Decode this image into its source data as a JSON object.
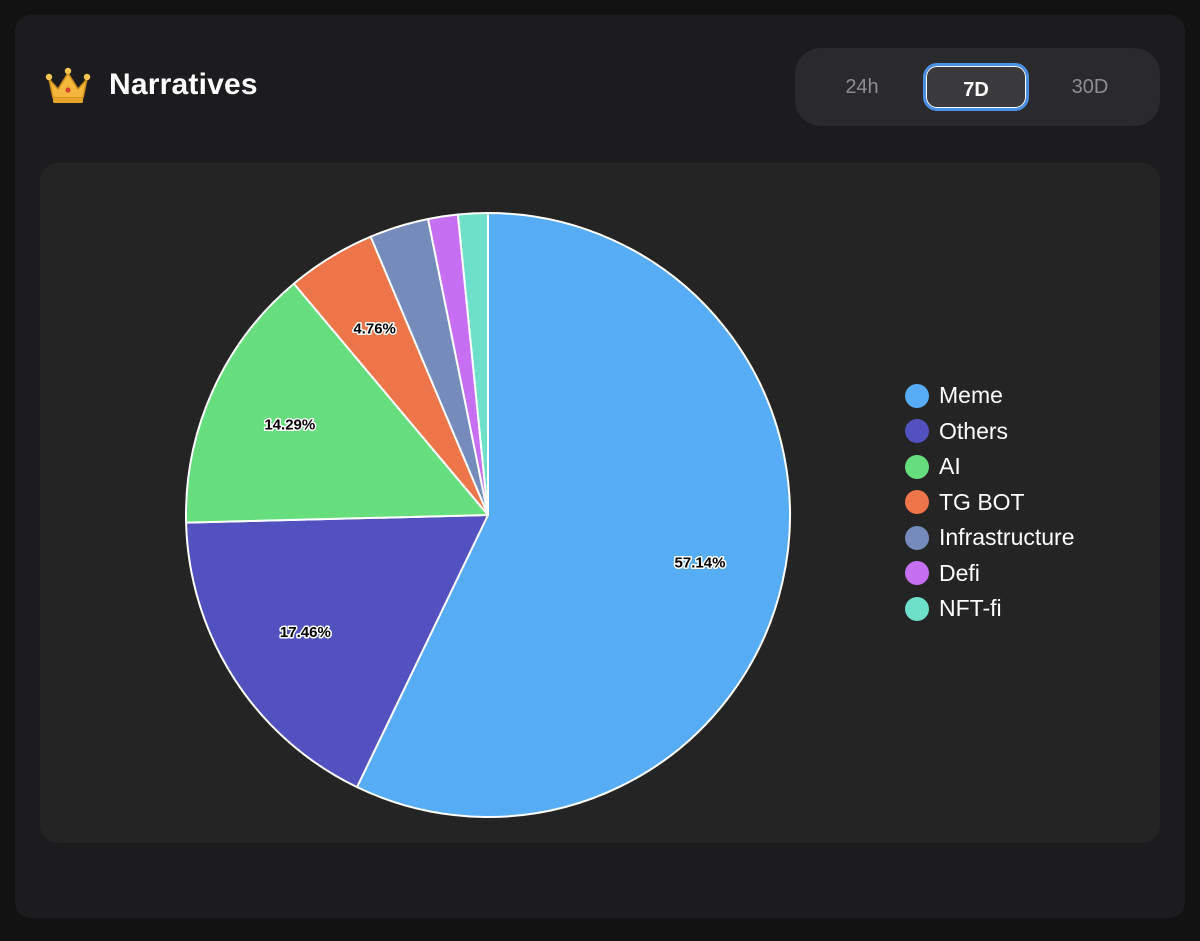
{
  "header": {
    "title": "Narratives",
    "icon": "crown-icon"
  },
  "tabs": [
    {
      "label": "24h",
      "active": false
    },
    {
      "label": "7D",
      "active": true
    },
    {
      "label": "30D",
      "active": false
    }
  ],
  "colors": {
    "accent": "#4a90e2"
  },
  "chart_data": {
    "type": "pie",
    "legend_position": "right",
    "slices": [
      {
        "name": "Meme",
        "value": 57.14,
        "label": "57.14%",
        "color": "#56acf5"
      },
      {
        "name": "Others",
        "value": 17.46,
        "label": "17.46%",
        "color": "#5350bf"
      },
      {
        "name": "AI",
        "value": 14.29,
        "label": "14.29%",
        "color": "#66de7e"
      },
      {
        "name": "TG BOT",
        "value": 4.76,
        "label": "4.76%",
        "color": "#ee7549"
      },
      {
        "name": "Infrastructure",
        "value": 3.17,
        "label": "",
        "color": "#748bbb"
      },
      {
        "name": "Defi",
        "value": 1.59,
        "label": "",
        "color": "#c76ff2"
      },
      {
        "name": "NFT-fi",
        "value": 1.59,
        "label": "",
        "color": "#6ee0c9"
      }
    ]
  }
}
